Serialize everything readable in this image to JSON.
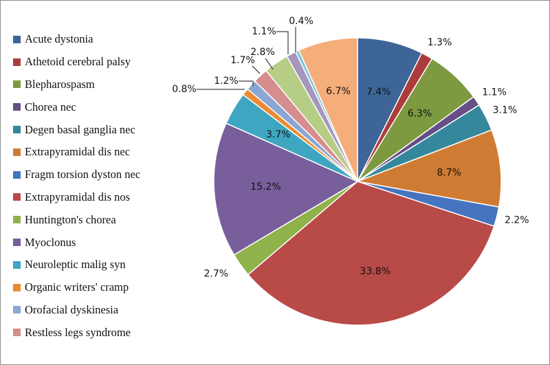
{
  "chart_data": {
    "type": "pie",
    "title": "",
    "start_angle": "12 o'clock, clockwise",
    "slices": [
      {
        "label": "Acute dystonia",
        "value": 7.4,
        "value_label": "7.4%",
        "color": "#3e6597",
        "legend": true,
        "label_placement": "inside"
      },
      {
        "label": "Athetoid cerebral palsy",
        "value": 1.3,
        "value_label": "1.3%",
        "color": "#ac3c3b",
        "legend": true,
        "label_placement": "outside"
      },
      {
        "label": "Blepharospasm",
        "value": 6.3,
        "value_label": "6.3%",
        "color": "#7d9a40",
        "legend": true,
        "label_placement": "inside"
      },
      {
        "label": "Chorea nec",
        "value": 1.1,
        "value_label": "1.1%",
        "color": "#664e87",
        "legend": true,
        "label_placement": "outside"
      },
      {
        "label": "Degen basal ganglia nec",
        "value": 3.1,
        "value_label": "3.1%",
        "color": "#35889c",
        "legend": true,
        "label_placement": "outside"
      },
      {
        "label": "Extrapyramidal dis nec",
        "value": 8.7,
        "value_label": "8.7%",
        "color": "#d07b34",
        "legend": true,
        "label_placement": "inside"
      },
      {
        "label": "Fragm torsion dyston nec",
        "value": 2.2,
        "value_label": "2.2%",
        "color": "#4674be",
        "legend": true,
        "label_placement": "outside"
      },
      {
        "label": "Extrapyramidal dis nos",
        "value": 33.8,
        "value_label": "33.8%",
        "color": "#b84a48",
        "legend": true,
        "label_placement": "inside"
      },
      {
        "label": "Huntington's chorea",
        "value": 2.7,
        "value_label": "2.7%",
        "color": "#8fb24b",
        "legend": true,
        "label_placement": "outside"
      },
      {
        "label": "Myoclonus",
        "value": 15.2,
        "value_label": "15.2%",
        "color": "#785e9b",
        "legend": true,
        "label_placement": "inside"
      },
      {
        "label": "Neuroleptic malig syn",
        "value": 3.7,
        "value_label": "3.7%",
        "color": "#3ea6c0",
        "legend": true,
        "label_placement": "inside"
      },
      {
        "label": "Organic writers' cramp",
        "value": 0.8,
        "value_label": "0.8%",
        "color": "#ec8a33",
        "legend": true,
        "label_placement": "leader"
      },
      {
        "label": "Orofacial dyskinesia",
        "value": 1.2,
        "value_label": "1.2%",
        "color": "#8aa6d4",
        "legend": true,
        "label_placement": "leader"
      },
      {
        "label": "Restless legs syndrome",
        "value": 1.7,
        "value_label": "1.7%",
        "color": "#d58d8d",
        "legend": true,
        "label_placement": "leader"
      },
      {
        "label": "",
        "value": 2.8,
        "value_label": "2.8%",
        "color": "#b6cd86",
        "legend": false,
        "label_placement": "leader"
      },
      {
        "label": "",
        "value": 1.1,
        "value_label": "1.1%",
        "color": "#a596bc",
        "legend": false,
        "label_placement": "leader"
      },
      {
        "label": "",
        "value": 0.4,
        "value_label": "0.4%",
        "color": "#7dc6dd",
        "legend": false,
        "label_placement": "leader"
      },
      {
        "label": "",
        "value": 6.7,
        "value_label": "6.7%",
        "color": "#f5ad7a",
        "legend": false,
        "label_placement": "inside"
      }
    ],
    "legend_position": "left",
    "grid": false
  }
}
